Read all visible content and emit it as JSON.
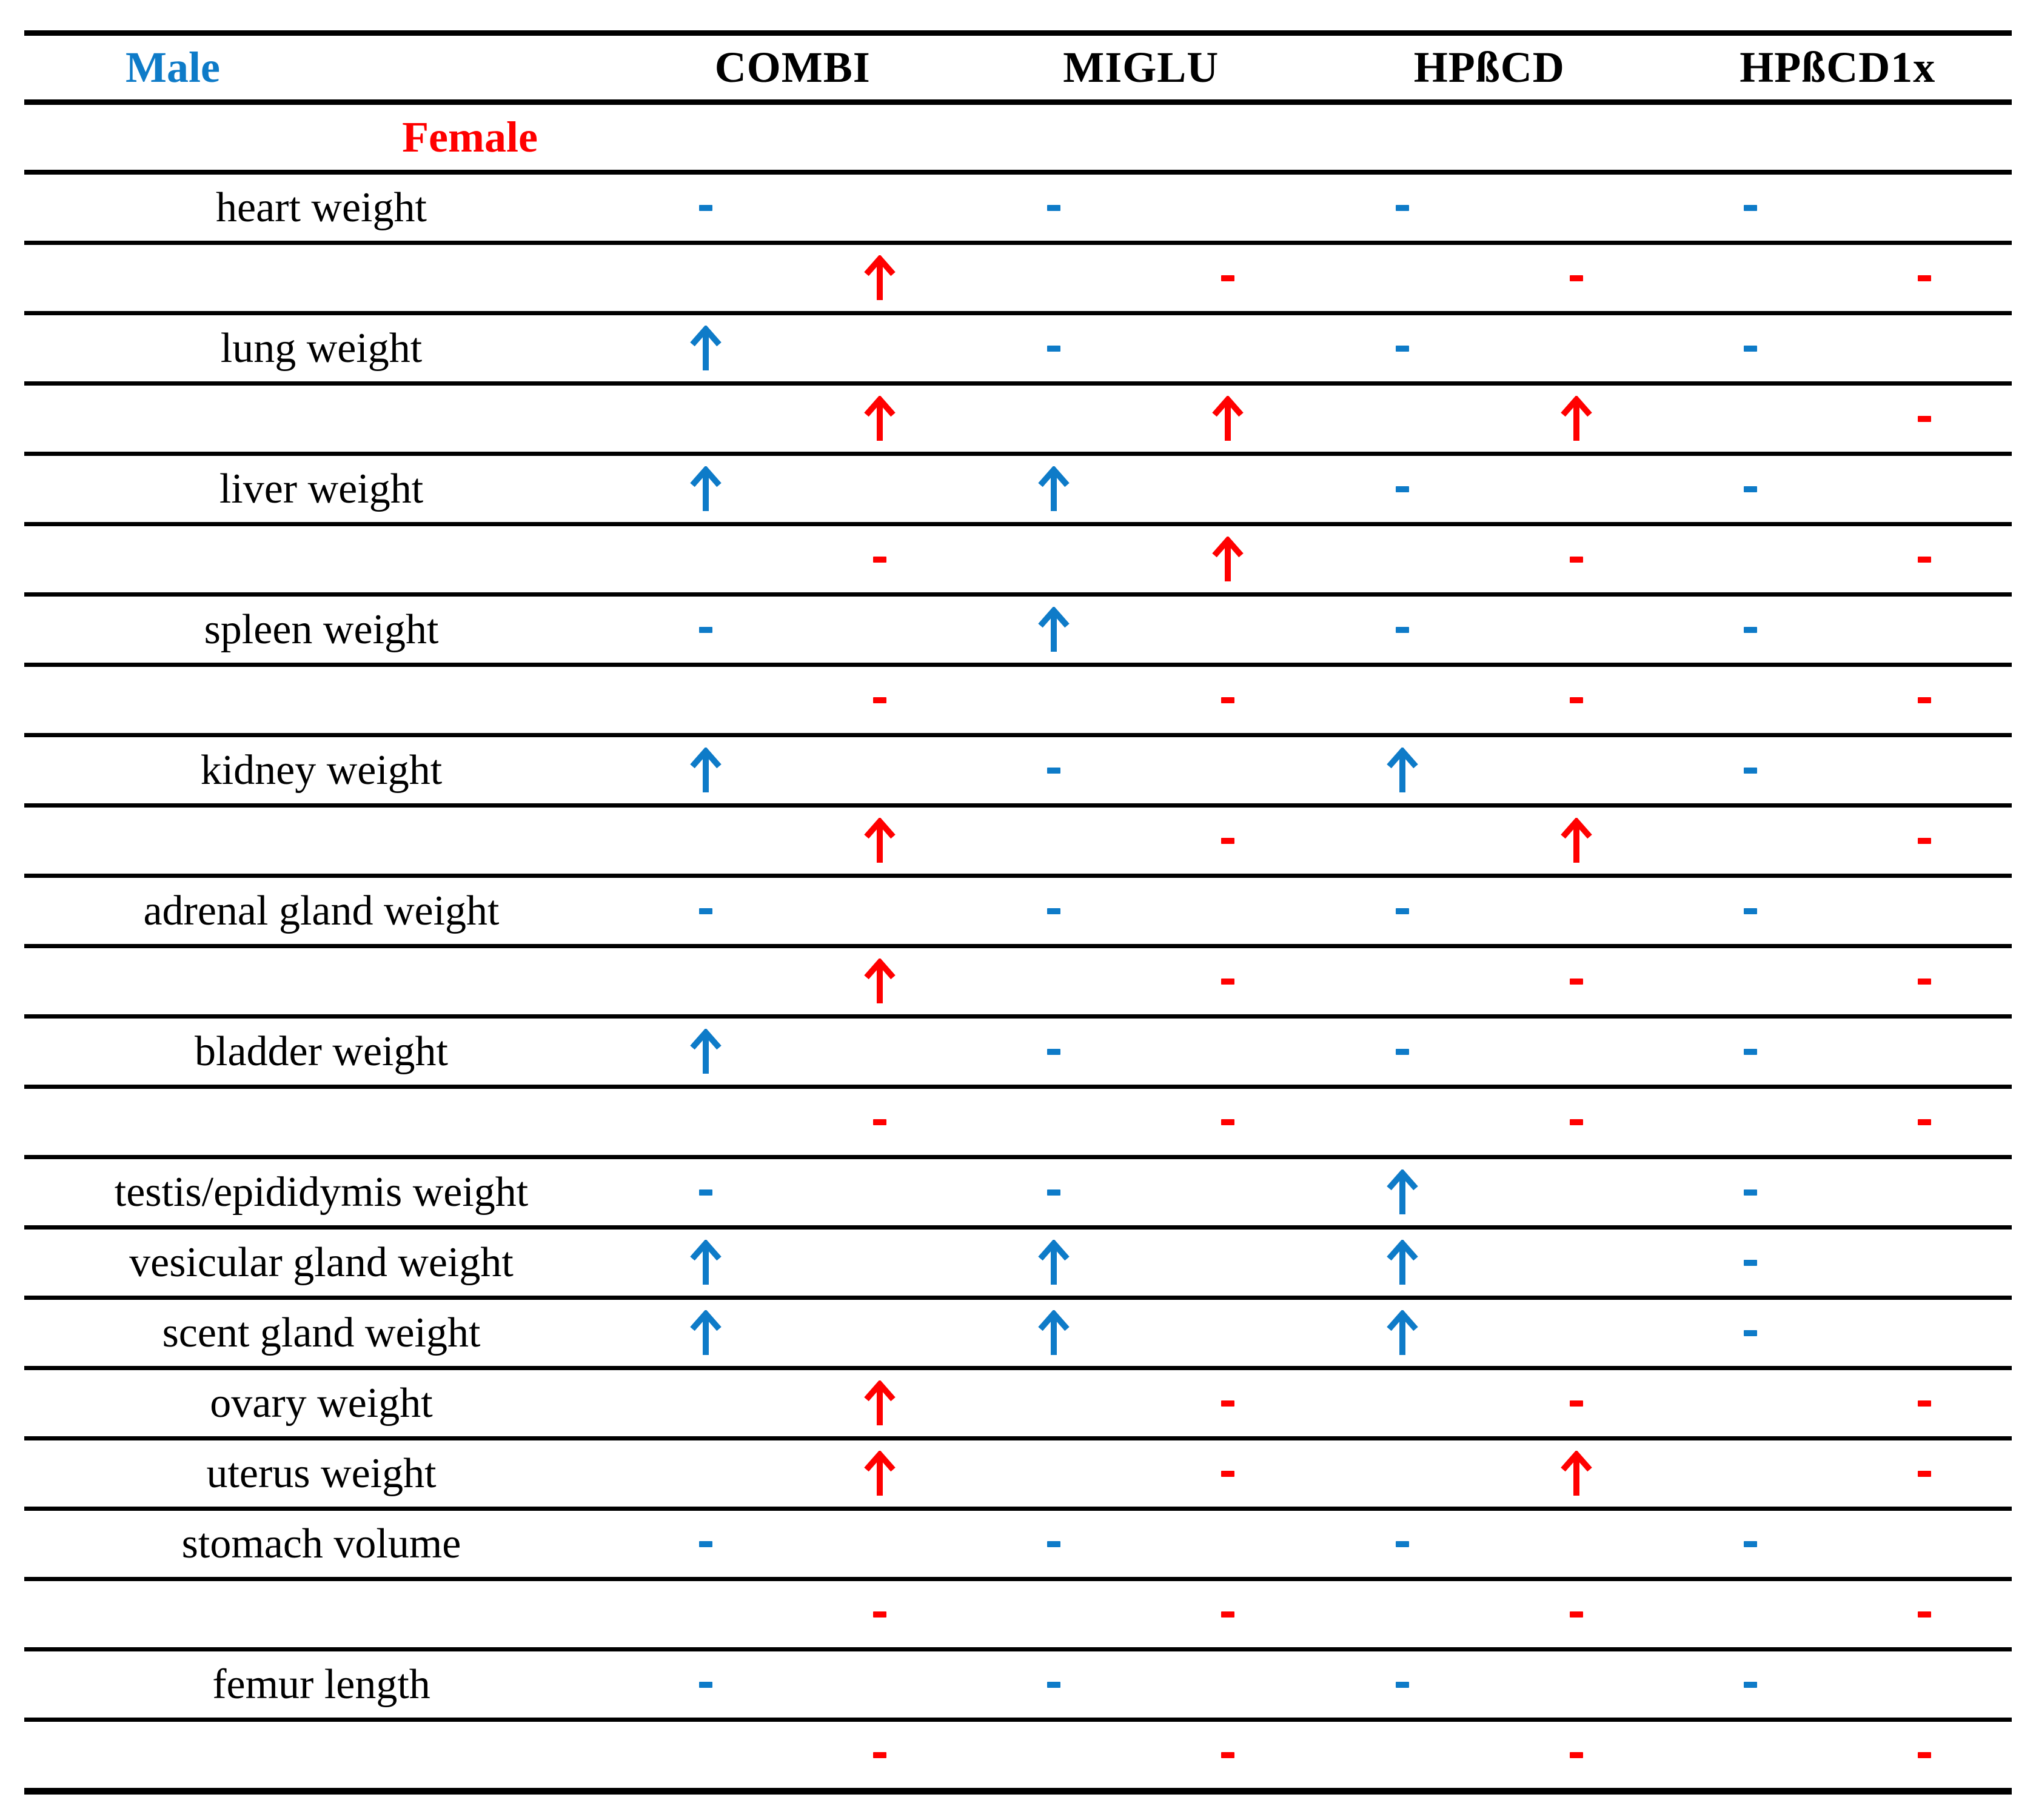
{
  "header": {
    "male_label": "Male",
    "female_label": "Female",
    "columns": [
      "COMBI",
      "MIGLU",
      "HPßCD",
      "HPßCD1x"
    ]
  },
  "colors": {
    "male": "#0e7bc8",
    "female": "#ff0000",
    "rule": "#000000"
  },
  "legend": {
    "up": "significant-increase",
    "dash": "no-change"
  },
  "rows": [
    {
      "label": "heart weight",
      "sex": "male",
      "values": [
        "dash",
        "dash",
        "dash",
        "dash"
      ]
    },
    {
      "label": "",
      "sex": "female",
      "values": [
        "up",
        "dash",
        "dash",
        "dash"
      ]
    },
    {
      "label": "lung weight",
      "sex": "male",
      "values": [
        "up",
        "dash",
        "dash",
        "dash"
      ]
    },
    {
      "label": "",
      "sex": "female",
      "values": [
        "up",
        "up",
        "up",
        "dash"
      ]
    },
    {
      "label": "liver weight",
      "sex": "male",
      "values": [
        "up",
        "up",
        "dash",
        "dash"
      ]
    },
    {
      "label": "",
      "sex": "female",
      "values": [
        "dash",
        "up",
        "dash",
        "dash"
      ]
    },
    {
      "label": "spleen weight",
      "sex": "male",
      "values": [
        "dash",
        "up",
        "dash",
        "dash"
      ]
    },
    {
      "label": "",
      "sex": "female",
      "values": [
        "dash",
        "dash",
        "dash",
        "dash"
      ]
    },
    {
      "label": "kidney weight",
      "sex": "male",
      "values": [
        "up",
        "dash",
        "up",
        "dash"
      ]
    },
    {
      "label": "",
      "sex": "female",
      "values": [
        "up",
        "dash",
        "up",
        "dash"
      ]
    },
    {
      "label": "adrenal gland weight",
      "sex": "male",
      "values": [
        "dash",
        "dash",
        "dash",
        "dash"
      ]
    },
    {
      "label": "",
      "sex": "female",
      "values": [
        "up",
        "dash",
        "dash",
        "dash"
      ]
    },
    {
      "label": "bladder weight",
      "sex": "male",
      "values": [
        "up",
        "dash",
        "dash",
        "dash"
      ]
    },
    {
      "label": "",
      "sex": "female",
      "values": [
        "dash",
        "dash",
        "dash",
        "dash"
      ]
    },
    {
      "label": "testis/epididymis weight",
      "sex": "male",
      "values": [
        "dash",
        "dash",
        "up",
        "dash"
      ]
    },
    {
      "label": "vesicular gland weight",
      "sex": "male",
      "values": [
        "up",
        "up",
        "up",
        "dash"
      ]
    },
    {
      "label": "scent gland weight",
      "sex": "male",
      "values": [
        "up",
        "up",
        "up",
        "dash"
      ]
    },
    {
      "label": "ovary weight",
      "sex": "female",
      "values": [
        "up",
        "dash",
        "dash",
        "dash"
      ]
    },
    {
      "label": "uterus weight",
      "sex": "female",
      "values": [
        "up",
        "dash",
        "up",
        "dash"
      ]
    },
    {
      "label": "stomach volume",
      "sex": "male",
      "values": [
        "dash",
        "dash",
        "dash",
        "dash"
      ]
    },
    {
      "label": "",
      "sex": "female",
      "values": [
        "dash",
        "dash",
        "dash",
        "dash"
      ]
    },
    {
      "label": "femur length",
      "sex": "male",
      "values": [
        "dash",
        "dash",
        "dash",
        "dash"
      ]
    },
    {
      "label": "",
      "sex": "female",
      "values": [
        "dash",
        "dash",
        "dash",
        "dash"
      ]
    }
  ]
}
